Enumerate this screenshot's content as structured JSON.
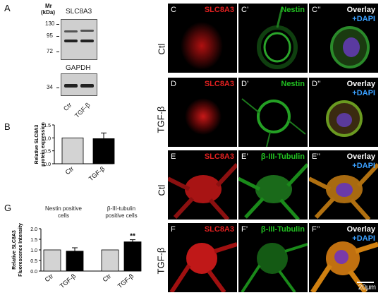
{
  "panelA": {
    "label": "A",
    "mr_label": "Mr",
    "kda_label": "(kDa)",
    "protein_top": "SLC8A3",
    "protein_bottom": "GAPDH",
    "markers_top": [
      "130",
      "95",
      "72"
    ],
    "markers_bottom": [
      "34"
    ],
    "lanes": [
      "Ctr",
      "TGF-β"
    ]
  },
  "panelB": {
    "label": "B",
    "chart_data": {
      "type": "bar",
      "categories": [
        "Ctr",
        "TGF-β"
      ],
      "values": [
        1.0,
        0.97
      ],
      "errors": [
        0,
        0.22
      ],
      "ylabel": "Relative SLC8A3\nprotein expression",
      "ylim": [
        0,
        1.5
      ],
      "yticks": [
        "0.0",
        "0.5",
        "1.0",
        "1.5"
      ],
      "colors": [
        "#d3d3d3",
        "#000000"
      ]
    }
  },
  "panelG": {
    "label": "G",
    "chart_data": {
      "type": "bar",
      "groups": [
        "Nestin positive\ncells",
        "β-III-tubulin\npositive cells"
      ],
      "categories": [
        "Ctr",
        "TGF-β",
        "Ctr",
        "TGF-β"
      ],
      "values": [
        1.0,
        0.94,
        1.0,
        1.38
      ],
      "errors": [
        0,
        0.16,
        0,
        0.1
      ],
      "annotation": "**",
      "ylabel": "Relative SLC8A3\nFluorescence Intensity",
      "ylim": [
        0,
        2.0
      ],
      "yticks": [
        "0.0",
        "0.5",
        "1.0",
        "1.5",
        "2.0"
      ],
      "colors": [
        "#d3d3d3",
        "#000000",
        "#d3d3d3",
        "#000000"
      ]
    }
  },
  "rows": [
    {
      "condition": "Ctl",
      "panels": [
        "C",
        "C’",
        "C’’"
      ],
      "marker": "Nestin"
    },
    {
      "condition": "TGF-β",
      "panels": [
        "D",
        "D’",
        "D’’"
      ],
      "marker": "Nestin"
    },
    {
      "condition": "Ctl",
      "panels": [
        "E",
        "E’",
        "E’’"
      ],
      "marker": "β-III-Tubulin"
    },
    {
      "condition": "TGF-β",
      "panels": [
        "F",
        "F’",
        "F’’"
      ],
      "marker": "β-III-Tubulin"
    }
  ],
  "channel_red": "SLC8A3",
  "overlay_label": "Overlay",
  "dapi_label": "+DAPI",
  "scale_bar": "20μm"
}
